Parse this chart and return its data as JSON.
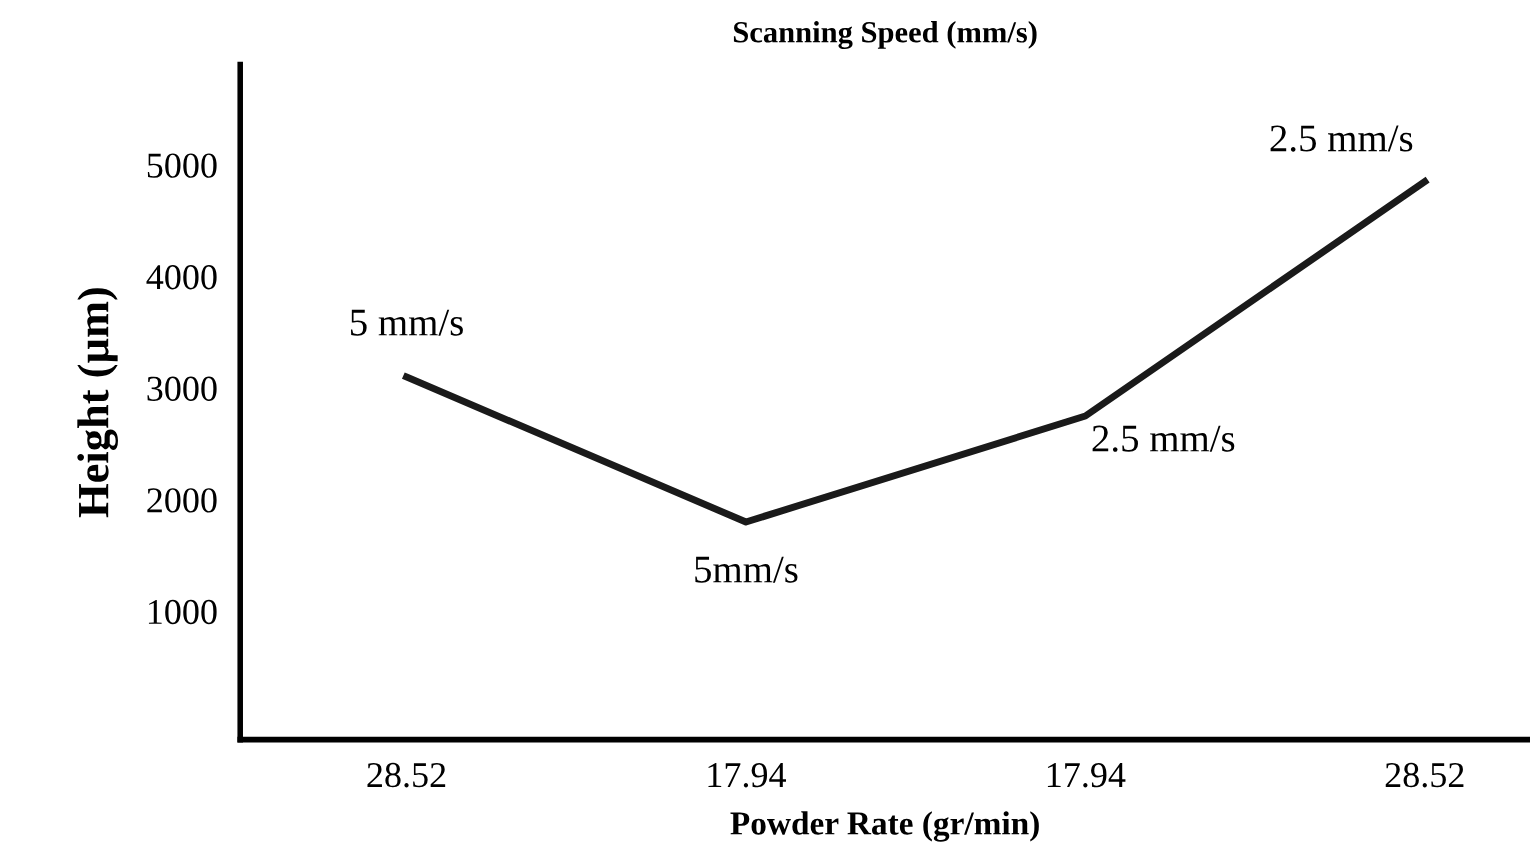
{
  "chart_data": {
    "type": "line",
    "title": "Scanning Speed (mm/s)",
    "xlabel": "Powder Rate (gr/min)",
    "ylabel": "Height (µm)",
    "categories": [
      "28.52",
      "17.94",
      "17.94",
      "28.52"
    ],
    "series": [
      {
        "color": "#1a1a1a",
        "values": [
          3100,
          1800,
          2750,
          4850
        ]
      }
    ],
    "ylim": [
      -150,
      5900
    ],
    "yticks": [
      1000,
      2000,
      3000,
      4000,
      5000
    ],
    "grid": false,
    "legend": false,
    "marker": "none",
    "line_style": "solid",
    "annotations": [
      "5 mm/s",
      "5mm/s",
      "2.5 mm/s",
      "2.5 mm/s"
    ]
  }
}
